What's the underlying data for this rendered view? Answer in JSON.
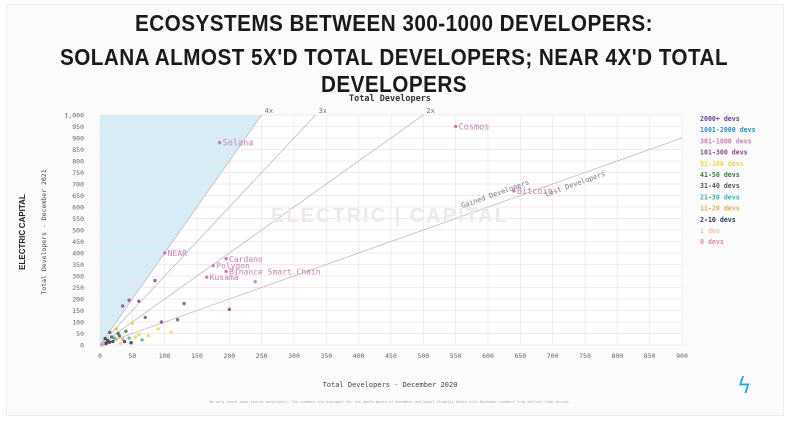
{
  "headline": {
    "line1": "ECOSYSTEMS BETWEEN 300-1000 DEVELOPERS:",
    "line2": "SOLANA  ALMOST 5X'D TOTAL DEVELOPERS; NEAR 4X'D TOTAL DEVELOPERS"
  },
  "brand": {
    "logo_text": "ELECTRIC CAPITAL",
    "watermark_text": "ELECTRIC | CAPITAL",
    "bolt_icon": "lightning-bolt-icon"
  },
  "footnote": "We only count open-source developers. The numbers are averages for the whole month of December and might slightly defer with December numbers from earlier time series.",
  "colors": {
    "accent": "#2aa9e0",
    "shade": "#cfeaf7",
    "label_pink": "#c77fb5",
    "grid": "#eee2ea"
  },
  "chart_data": {
    "type": "scatter",
    "title": "Total Developers",
    "xlabel": "Total Developers - December 2020",
    "ylabel": "Total Developers - December 2021",
    "xlim": [
      0,
      900
    ],
    "ylim": [
      0,
      1000
    ],
    "xticks": [
      0,
      50,
      100,
      150,
      200,
      250,
      300,
      350,
      400,
      450,
      500,
      550,
      600,
      650,
      700,
      750,
      800,
      850,
      900
    ],
    "yticks": [
      0,
      50,
      100,
      150,
      200,
      250,
      300,
      350,
      400,
      450,
      500,
      550,
      600,
      650,
      700,
      750,
      800,
      850,
      900,
      950,
      1000
    ],
    "ytick_labels": [
      "0",
      "50",
      "100",
      "150",
      "200",
      "250",
      "300",
      "350",
      "400",
      "450",
      "500",
      "550",
      "600",
      "650",
      "700",
      "750",
      "800",
      "850",
      "900",
      "950",
      "1,000"
    ],
    "reference_lines": [
      {
        "label": "4x",
        "slope": 4
      },
      {
        "label": "3x",
        "slope": 3
      },
      {
        "label": "2x",
        "slope": 2
      },
      {
        "label": "1x",
        "slope": 1
      }
    ],
    "region_labels": [
      "Gained Developers",
      "Lost Developers"
    ],
    "legend": {
      "position": "right",
      "entries": [
        {
          "label": "2000+ devs",
          "color": "#6a3d9a"
        },
        {
          "label": "1001-2000 devs",
          "color": "#2a8fbd"
        },
        {
          "label": "301-1000 devs",
          "color": "#c77fb5"
        },
        {
          "label": "101-300 devs",
          "color": "#8e4a7e"
        },
        {
          "label": "51-100 devs",
          "color": "#e6d84a"
        },
        {
          "label": "41-50 devs",
          "color": "#3a7d3a"
        },
        {
          "label": "31-40 devs",
          "color": "#555555"
        },
        {
          "label": "21-30 devs",
          "color": "#45b0a8"
        },
        {
          "label": "11-20 devs",
          "color": "#e0b050"
        },
        {
          "label": "2-10 devs",
          "color": "#2f3a4a"
        },
        {
          "label": "1 dev",
          "color": "#f0c8a0"
        },
        {
          "label": "0 devs",
          "color": "#e08aa0"
        }
      ]
    },
    "labeled_points": [
      {
        "name": "Solana",
        "x": 185,
        "y": 880
      },
      {
        "name": "Cosmos",
        "x": 550,
        "y": 950
      },
      {
        "name": "Bitcoin",
        "x": 640,
        "y": 670
      },
      {
        "name": "NEAR",
        "x": 100,
        "y": 400
      },
      {
        "name": "Cardano",
        "x": 195,
        "y": 375
      },
      {
        "name": "Polygon",
        "x": 175,
        "y": 345
      },
      {
        "name": "Binance Smart Chain",
        "x": 195,
        "y": 320
      },
      {
        "name": "Kusama",
        "x": 165,
        "y": 295
      }
    ],
    "other_points": [
      {
        "x": 240,
        "y": 275,
        "c": "#c77fb5"
      },
      {
        "x": 130,
        "y": 180,
        "c": "#8e4a7e"
      },
      {
        "x": 200,
        "y": 155,
        "c": "#8e4a7e"
      },
      {
        "x": 85,
        "y": 280,
        "c": "#8e4a7e"
      },
      {
        "x": 45,
        "y": 195,
        "c": "#8e4a7e"
      },
      {
        "x": 35,
        "y": 170,
        "c": "#8e4a7e"
      },
      {
        "x": 60,
        "y": 190,
        "c": "#8e4a7e"
      },
      {
        "x": 110,
        "y": 55,
        "c": "#e6d84a"
      },
      {
        "x": 90,
        "y": 70,
        "c": "#e6d84a"
      },
      {
        "x": 50,
        "y": 95,
        "c": "#e6d84a"
      },
      {
        "x": 70,
        "y": 120,
        "c": "#8e4a7e"
      },
      {
        "x": 60,
        "y": 45,
        "c": "#e6d84a"
      },
      {
        "x": 40,
        "y": 60,
        "c": "#3a7d3a"
      },
      {
        "x": 30,
        "y": 40,
        "c": "#555555"
      },
      {
        "x": 45,
        "y": 30,
        "c": "#45b0a8"
      },
      {
        "x": 25,
        "y": 25,
        "c": "#e0b050"
      },
      {
        "x": 20,
        "y": 15,
        "c": "#2f3a4a"
      },
      {
        "x": 15,
        "y": 12,
        "c": "#2f3a4a"
      },
      {
        "x": 10,
        "y": 8,
        "c": "#2f3a4a"
      },
      {
        "x": 8,
        "y": 5,
        "c": "#2f3a4a"
      },
      {
        "x": 5,
        "y": 3,
        "c": "#f0c8a0"
      },
      {
        "x": 3,
        "y": 0,
        "c": "#e08aa0"
      },
      {
        "x": 12,
        "y": 20,
        "c": "#2f3a4a"
      },
      {
        "x": 22,
        "y": 30,
        "c": "#45b0a8"
      },
      {
        "x": 35,
        "y": 25,
        "c": "#e0b050"
      },
      {
        "x": 28,
        "y": 50,
        "c": "#3a7d3a"
      },
      {
        "x": 55,
        "y": 35,
        "c": "#e6d84a"
      },
      {
        "x": 18,
        "y": 35,
        "c": "#555555"
      },
      {
        "x": 38,
        "y": 15,
        "c": "#2f3a4a"
      },
      {
        "x": 48,
        "y": 10,
        "c": "#2f3a4a"
      },
      {
        "x": 65,
        "y": 22,
        "c": "#45b0a8"
      },
      {
        "x": 75,
        "y": 40,
        "c": "#e6d84a"
      },
      {
        "x": 95,
        "y": 100,
        "c": "#8e4a7e"
      },
      {
        "x": 120,
        "y": 110,
        "c": "#8e4a7e"
      },
      {
        "x": 25,
        "y": 70,
        "c": "#e0b050"
      },
      {
        "x": 15,
        "y": 55,
        "c": "#555555"
      },
      {
        "x": 8,
        "y": 28,
        "c": "#2f3a4a"
      },
      {
        "x": 32,
        "y": 8,
        "c": "#f0c8a0"
      }
    ]
  }
}
